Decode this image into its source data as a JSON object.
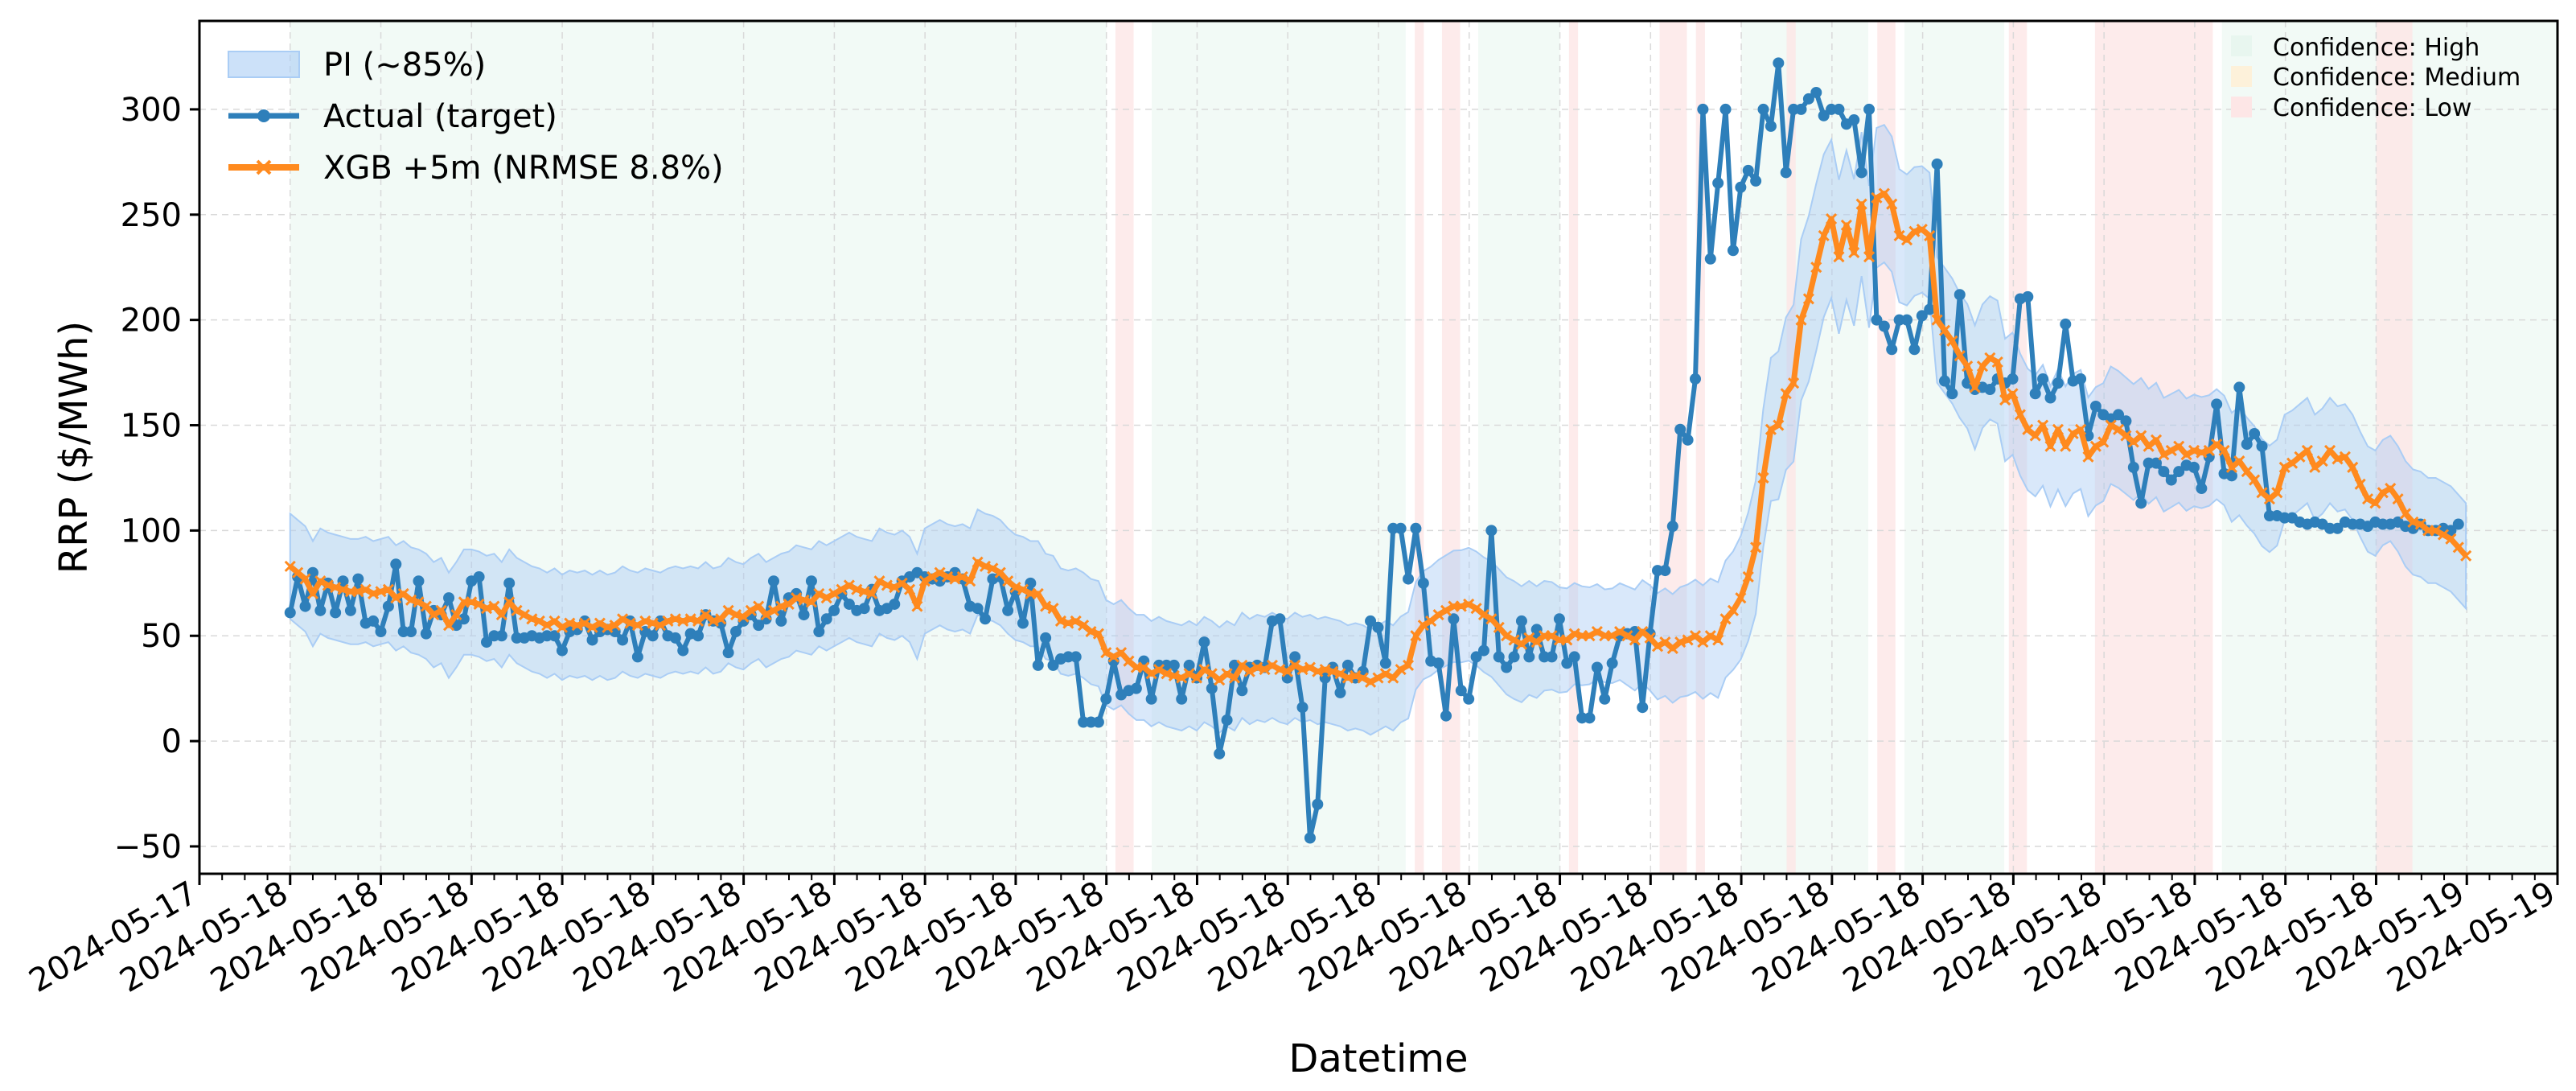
{
  "chart_data": {
    "type": "line",
    "title": "",
    "xlabel": "Datetime",
    "ylabel": "RRP ($/MWh)",
    "ylim": [
      -63,
      342
    ],
    "y_ticks": [
      -50,
      0,
      50,
      100,
      150,
      200,
      250,
      300
    ],
    "x_tick_labels": [
      "2024-05-17",
      "2024-05-18",
      "2024-05-18",
      "2024-05-18",
      "2024-05-18",
      "2024-05-18",
      "2024-05-18",
      "2024-05-18",
      "2024-05-18",
      "2024-05-18",
      "2024-05-18",
      "2024-05-18",
      "2024-05-18",
      "2024-05-18",
      "2024-05-18",
      "2024-05-18",
      "2024-05-18",
      "2024-05-18",
      "2024-05-18",
      "2024-05-18",
      "2024-05-18",
      "2024-05-18",
      "2024-05-18",
      "2024-05-18",
      "2024-05-18",
      "2024-05-19",
      "2024-05-19"
    ],
    "grid": true,
    "legend": {
      "placement": "top-left",
      "entries": [
        {
          "label": "PI (~85%)",
          "kind": "band",
          "color": "#aacdf5"
        },
        {
          "label": "Actual (target)",
          "kind": "line-dot",
          "color": "#2e7fba"
        },
        {
          "label": "XGB +5m (NRMSE 8.8%)",
          "kind": "line-x",
          "color": "#ff8a1e"
        }
      ]
    },
    "confidence_legend": {
      "placement": "top-right",
      "entries": [
        {
          "label": "Confidence: High",
          "color": "#e8f6ef"
        },
        {
          "label": "Confidence: Medium",
          "color": "#fdf1da"
        },
        {
          "label": "Confidence: Low",
          "color": "#fde6e6"
        }
      ]
    },
    "x_domain": [
      -1,
      25
    ],
    "low_confidence_ranges": [
      [
        9.1,
        9.3
      ],
      [
        12.4,
        12.5
      ],
      [
        12.7,
        12.9
      ],
      [
        14.1,
        14.2
      ],
      [
        15.1,
        15.4
      ],
      [
        15.5,
        15.6
      ],
      [
        16.5,
        16.6
      ],
      [
        17.5,
        17.7
      ],
      [
        18.95,
        19.15
      ],
      [
        19.9,
        21.2
      ],
      [
        23.0,
        23.4
      ]
    ],
    "high_confidence_ranges": [
      [
        0,
        9.0
      ],
      [
        9.5,
        12.3
      ],
      [
        13.1,
        14.0
      ],
      [
        16.0,
        17.4
      ],
      [
        17.8,
        18.9
      ],
      [
        21.3,
        25.0
      ]
    ],
    "series": [
      {
        "name": "Actual (target)",
        "color": "#2e7fba",
        "x_start": 0,
        "x_step": 0.0833,
        "values": [
          61,
          78,
          64,
          80,
          62,
          75,
          61,
          76,
          62,
          77,
          56,
          57,
          52,
          64,
          84,
          52,
          52,
          76,
          51,
          62,
          60,
          68,
          55,
          58,
          76,
          78,
          47,
          50,
          50,
          75,
          49,
          49,
          50,
          49,
          50,
          50,
          43,
          52,
          53,
          57,
          48,
          52,
          53,
          52,
          48,
          57,
          40,
          52,
          50,
          57,
          50,
          49,
          43,
          51,
          50,
          60,
          57,
          56,
          42,
          52,
          57,
          60,
          55,
          58,
          76,
          57,
          68,
          70,
          60,
          76,
          52,
          58,
          62,
          70,
          65,
          62,
          63,
          72,
          62,
          63,
          65,
          76,
          78,
          80,
          78,
          77,
          76,
          78,
          80,
          77,
          64,
          63,
          58,
          77,
          78,
          62,
          71,
          56,
          75,
          36,
          49,
          36,
          39,
          40,
          40,
          9,
          9,
          9,
          20,
          38,
          22,
          24,
          25,
          38,
          20,
          36,
          36,
          36,
          20,
          36,
          30,
          47,
          25,
          -6,
          10,
          36,
          24,
          35,
          36,
          35,
          57,
          58,
          30,
          40,
          16,
          -46,
          -30,
          30,
          35,
          23,
          36,
          30,
          33,
          57,
          54,
          37,
          101,
          101,
          77,
          101,
          75,
          38,
          37,
          12,
          58,
          24,
          20,
          40,
          43,
          100,
          40,
          35,
          40,
          57,
          40,
          53,
          40,
          40,
          58,
          37,
          40,
          11,
          11,
          35,
          20,
          37,
          50,
          51,
          52,
          16,
          51,
          81,
          81,
          102,
          148,
          143,
          172,
          300,
          229,
          265,
          300,
          233,
          263,
          271,
          266,
          300,
          292,
          322,
          270,
          300,
          300,
          305,
          308,
          297,
          300,
          300,
          293,
          295,
          270,
          300,
          200,
          197,
          186,
          200,
          200,
          186,
          202,
          205,
          274,
          171,
          165,
          212,
          170,
          167,
          168,
          167,
          172,
          170,
          172,
          210,
          211,
          165,
          172,
          163,
          170,
          198,
          171,
          172,
          145,
          159,
          155,
          153,
          155,
          152,
          130,
          113,
          132,
          132,
          128,
          124,
          128,
          131,
          130,
          120,
          135,
          160,
          127,
          126,
          168,
          141,
          146,
          140,
          107,
          107,
          106,
          106,
          104,
          103,
          104,
          103,
          101,
          101,
          104,
          103,
          103,
          102,
          104,
          103,
          103,
          104,
          102,
          101,
          103,
          100,
          100,
          101,
          100,
          103
        ]
      },
      {
        "name": "XGB +5m (NRMSE 8.8%)",
        "color": "#ff8a1e",
        "x_start": 0,
        "x_step": 0.0833,
        "values": [
          83,
          80,
          77,
          70,
          76,
          74,
          73,
          72,
          71,
          71,
          72,
          70,
          71,
          72,
          68,
          70,
          67,
          66,
          64,
          60,
          62,
          55,
          60,
          66,
          66,
          65,
          63,
          64,
          60,
          66,
          62,
          60,
          58,
          57,
          55,
          57,
          54,
          56,
          55,
          56,
          54,
          56,
          54,
          55,
          58,
          56,
          55,
          57,
          56,
          55,
          57,
          58,
          57,
          58,
          57,
          60,
          57,
          58,
          62,
          60,
          59,
          62,
          64,
          60,
          62,
          64,
          65,
          68,
          67,
          66,
          70,
          68,
          70,
          72,
          74,
          72,
          71,
          70,
          76,
          74,
          73,
          75,
          72,
          64,
          76,
          78,
          80,
          78,
          77,
          78,
          76,
          85,
          83,
          82,
          80,
          76,
          73,
          72,
          70,
          70,
          64,
          63,
          57,
          56,
          57,
          55,
          52,
          51,
          42,
          40,
          42,
          38,
          35,
          35,
          32,
          34,
          32,
          31,
          30,
          32,
          30,
          34,
          32,
          29,
          32,
          30,
          36,
          33,
          35,
          34,
          36,
          34,
          33,
          36,
          34,
          35,
          33,
          34,
          33,
          32,
          30,
          31,
          30,
          28,
          30,
          32,
          30,
          34,
          36,
          50,
          55,
          57,
          60,
          62,
          64,
          64,
          65,
          63,
          60,
          58,
          54,
          50,
          48,
          46,
          49,
          47,
          50,
          50,
          48,
          48,
          51,
          50,
          50,
          52,
          50,
          50,
          52,
          50,
          48,
          52,
          49,
          45,
          47,
          44,
          47,
          48,
          50,
          47,
          50,
          48,
          58,
          62,
          68,
          78,
          92,
          125,
          148,
          150,
          165,
          170,
          200,
          210,
          225,
          240,
          248,
          230,
          245,
          232,
          255,
          230,
          258,
          260,
          255,
          240,
          238,
          242,
          243,
          240,
          200,
          195,
          190,
          183,
          178,
          168,
          178,
          182,
          180,
          162,
          165,
          155,
          148,
          145,
          150,
          140,
          148,
          140,
          146,
          148,
          135,
          140,
          142,
          150,
          148,
          145,
          142,
          145,
          140,
          143,
          136,
          138,
          140,
          136,
          138,
          137,
          138,
          141,
          138,
          130,
          133,
          128,
          124,
          118,
          115,
          118,
          130,
          132,
          135,
          138,
          130,
          133,
          138,
          134,
          135,
          130,
          122,
          115,
          113,
          118,
          120,
          115,
          108,
          104,
          103,
          100,
          100,
          98,
          96,
          92,
          88
        ]
      }
    ],
    "prediction_interval": {
      "name": "PI (~85%)",
      "color": "#aacdf5",
      "x_start": 0,
      "x_step": 0.0833,
      "half_width_knots": [
        [
          0,
          25
        ],
        [
          9.0,
          25
        ],
        [
          12.2,
          25
        ],
        [
          13.5,
          28
        ],
        [
          14.5,
          22
        ],
        [
          15.0,
          25
        ],
        [
          15.9,
          28
        ],
        [
          16.4,
          35
        ],
        [
          16.8,
          40
        ],
        [
          17.2,
          35
        ],
        [
          18.0,
          30
        ],
        [
          20.0,
          28
        ],
        [
          22.0,
          25
        ],
        [
          25.0,
          25
        ]
      ]
    }
  }
}
